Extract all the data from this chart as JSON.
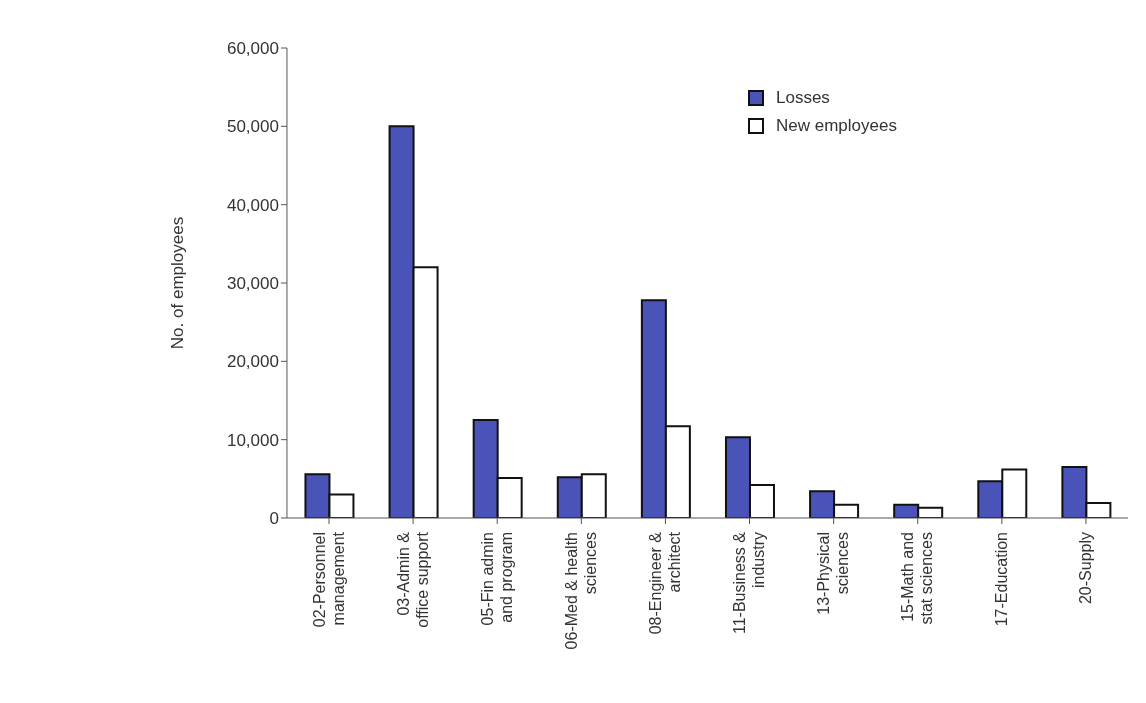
{
  "chart_data": {
    "type": "bar",
    "ylabel": "No. of employees",
    "categories": [
      "02-Personnel management",
      "03-Admin & office support",
      "05-Fin admin and program",
      "06-Med & health sciences",
      "08-Engineer & architect",
      "11-Business & industry",
      "13-Physical sciences",
      "15-Math and stat sciences",
      "17-Education",
      "20-Supply"
    ],
    "series": [
      {
        "name": "Losses",
        "color": "#4a54b8",
        "values": [
          5600,
          50000,
          12500,
          5200,
          27800,
          10300,
          3400,
          1700,
          4700,
          6500
        ]
      },
      {
        "name": "New employees",
        "color": "#ffffff",
        "values": [
          3000,
          32000,
          5100,
          5600,
          11700,
          4200,
          1700,
          1300,
          6200,
          1900
        ]
      }
    ],
    "ylim": [
      0,
      60000
    ],
    "yticks": [
      {
        "value": 0,
        "label": "0"
      },
      {
        "value": 10000,
        "label": "10,000"
      },
      {
        "value": 20000,
        "label": "20,000"
      },
      {
        "value": 30000,
        "label": "30,000"
      },
      {
        "value": 40000,
        "label": "40,000"
      },
      {
        "value": 50000,
        "label": "50,000"
      },
      {
        "value": 60000,
        "label": "60,000"
      }
    ],
    "legend": "top right",
    "grid": false
  }
}
